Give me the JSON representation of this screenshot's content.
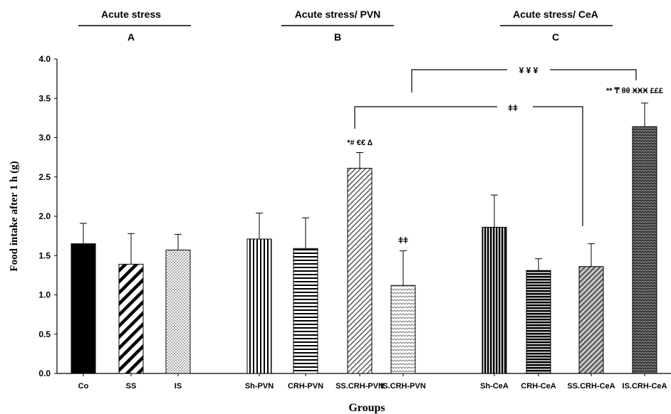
{
  "chart_data": {
    "type": "bar",
    "xlabel": "Groups",
    "ylabel": "Food intake after 1 h (g)",
    "ylim": [
      0,
      4.0
    ],
    "yticks": [
      "0.0",
      "0.5",
      "1.0",
      "1.5",
      "2.0",
      "2.5",
      "3.0",
      "3.5",
      "4.0"
    ],
    "grid": false,
    "categories": [
      "Co",
      "SS",
      "IS",
      "Sh-PVN",
      "CRH-PVN",
      "SS.CRH-PVN",
      "IS.CRH-PVN",
      "Sh-CeA",
      "CRH-CeA",
      "SS.CRH-CeA",
      "IS.CRH-CeA"
    ],
    "values": [
      1.65,
      1.39,
      1.57,
      1.71,
      1.59,
      2.61,
      1.12,
      1.86,
      1.31,
      1.36,
      3.14
    ],
    "errors": [
      0.26,
      0.39,
      0.2,
      0.33,
      0.39,
      0.2,
      0.44,
      0.41,
      0.15,
      0.29,
      0.3
    ],
    "patterns": [
      "solid",
      "diag-wide",
      "dots",
      "vstripes",
      "hstripes",
      "diag-fine",
      "zigzag-light",
      "vstripes-dense",
      "hstripes-dense",
      "diag-gray",
      "zigzag-dark"
    ],
    "groups": [
      {
        "title": "Acute stress",
        "letter": "A"
      },
      {
        "title": "Acute stress/ PVN",
        "letter": "B"
      },
      {
        "title": "Acute stress/ CeA",
        "letter": "C"
      }
    ],
    "annotations": {
      "ss_crh_pvn": "*# €€ ∆",
      "is_crh_pvn": "ǂǂ",
      "is_crh_cea": "** ₸ θθ ӾӾӾ £££",
      "bracket_pvn_cea": "ǂǂ",
      "bracket_cross": "¥ ¥ ¥"
    }
  }
}
